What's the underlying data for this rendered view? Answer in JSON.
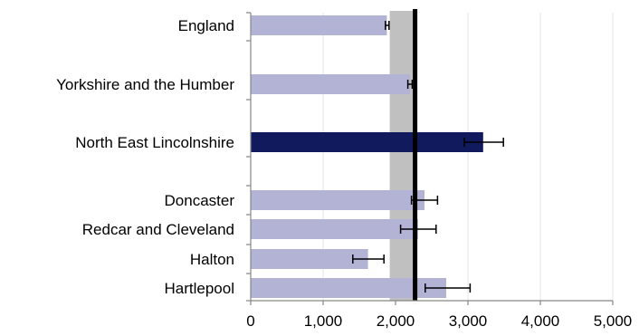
{
  "chart_data": {
    "type": "bar",
    "orientation": "horizontal",
    "categories": [
      "England",
      "Yorkshire and the Humber",
      "North East Lincolnshire",
      "Doncaster",
      "Redcar and Cleveland",
      "Halton",
      "Hartlepool"
    ],
    "values": [
      1880,
      2200,
      3210,
      2400,
      2310,
      1620,
      2700
    ],
    "error_low": [
      1860,
      2170,
      2950,
      2220,
      2070,
      1410,
      2410
    ],
    "error_high": [
      1910,
      2230,
      3490,
      2580,
      2560,
      1840,
      3030
    ],
    "highlight_index": 2,
    "reference_line": 2270,
    "reference_band": [
      1920,
      2280
    ],
    "xlim": [
      0,
      5000
    ],
    "xticks": [
      0,
      1000,
      2000,
      3000,
      4000,
      5000
    ],
    "xtick_labels": [
      "0",
      "1,000",
      "2,000",
      "3,000",
      "4,000",
      "5,000"
    ],
    "title": "",
    "xlabel": "",
    "ylabel": "",
    "grid": true,
    "colors": {
      "bar": "#b3b3d6",
      "highlight": "#121a5e",
      "band": "#c0c0c0",
      "reference": "#000000",
      "grid": "#e6e6e6",
      "error_bar": "#000000"
    }
  }
}
